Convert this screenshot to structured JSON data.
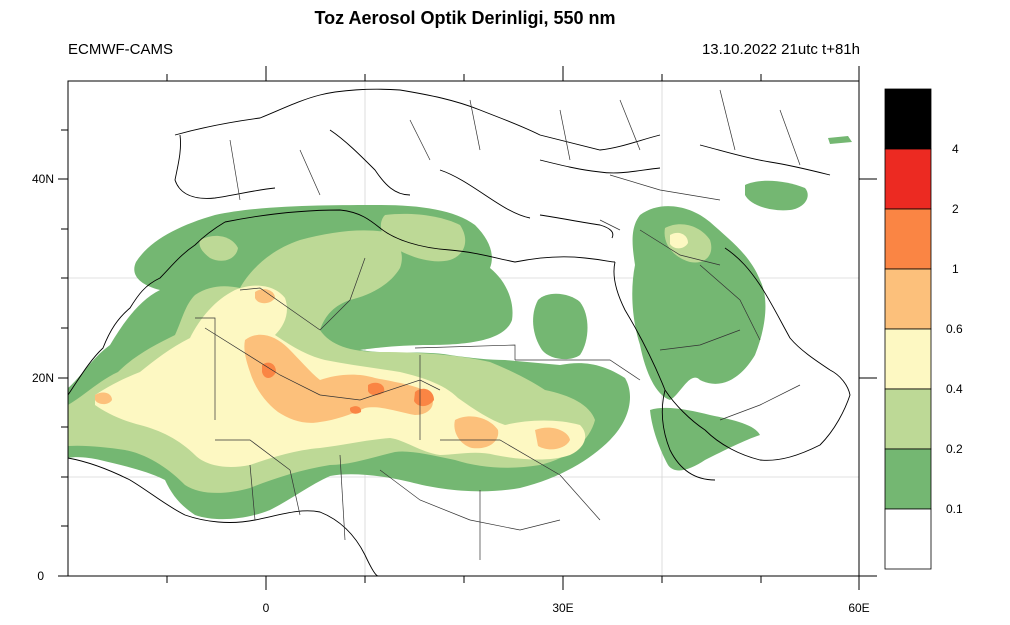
{
  "header": {
    "title": "Toz Aerosol Optik Derinligi, 550 nm",
    "source": "ECMWF-CAMS",
    "valid_time": "13.10.2022 21utc t+81h"
  },
  "axes": {
    "lat_ticks": [
      {
        "value": 40,
        "label": "40N"
      },
      {
        "value": 20,
        "label": "20N"
      },
      {
        "value": 0,
        "label": "0"
      }
    ],
    "lon_ticks": [
      {
        "value": 0,
        "label": "0"
      },
      {
        "value": 30,
        "label": "30E"
      },
      {
        "value": 60,
        "label": "60E"
      }
    ],
    "lon_range": [
      -20,
      61
    ],
    "lat_range": [
      0,
      50
    ]
  },
  "colorbar": {
    "colors": [
      "#ffffff",
      "#74b772",
      "#bdd996",
      "#fdf8c2",
      "#fcc07b",
      "#fa8544",
      "#ec2a22",
      "#000000"
    ],
    "labels": [
      "0.1",
      "0.2",
      "0.4",
      "0.6",
      "1",
      "2",
      "4"
    ]
  },
  "map": {
    "fill_colors": {
      "low": "#74b772",
      "mid": "#bdd996",
      "high": "#fdf8c2",
      "very_high": "#fcc07b",
      "extreme": "#fa8544"
    }
  }
}
